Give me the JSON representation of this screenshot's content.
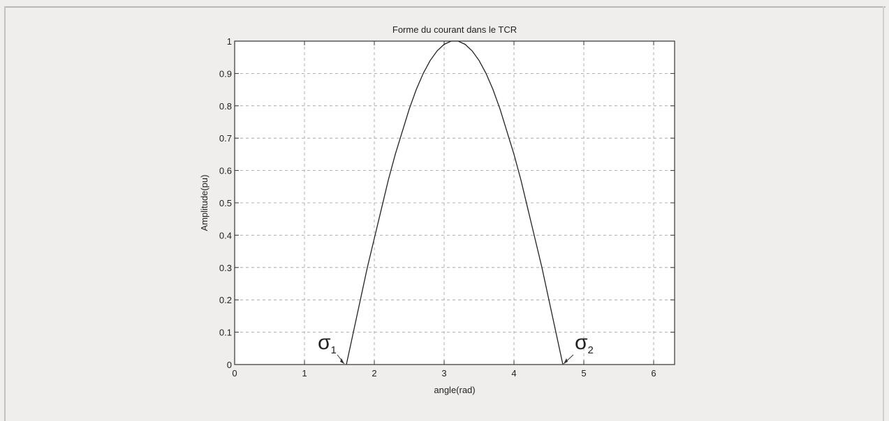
{
  "chart_data": {
    "type": "line",
    "title": "Forme du courant dans le TCR",
    "xlabel": "angle(rad)",
    "ylabel": "Amplitude(pu)",
    "xlim": [
      0,
      6.3
    ],
    "ylim": [
      0,
      1
    ],
    "x_ticks": [
      0,
      1,
      2,
      3,
      4,
      5,
      6
    ],
    "y_ticks": [
      0,
      0.1,
      0.2,
      0.3,
      0.4,
      0.5,
      0.6,
      0.7,
      0.8,
      0.9,
      1
    ],
    "grid": true,
    "series": [
      {
        "x": [
          1.6,
          1.7,
          1.8,
          1.9,
          2.0,
          2.1,
          2.2,
          2.3,
          2.4,
          2.5,
          2.6,
          2.7,
          2.8,
          2.9,
          3.0,
          3.1,
          3.14,
          3.2,
          3.3,
          3.4,
          3.5,
          3.6,
          3.7,
          3.8,
          3.9,
          4.0,
          4.1,
          4.2,
          4.3,
          4.4,
          4.5,
          4.6,
          4.7
        ],
        "y": [
          0.0,
          0.1,
          0.2,
          0.3,
          0.39,
          0.48,
          0.57,
          0.65,
          0.72,
          0.79,
          0.85,
          0.9,
          0.94,
          0.97,
          0.99,
          1.0,
          1.0,
          1.0,
          0.99,
          0.97,
          0.94,
          0.9,
          0.85,
          0.79,
          0.72,
          0.65,
          0.57,
          0.48,
          0.39,
          0.3,
          0.2,
          0.1,
          0.0
        ],
        "color": "#222222"
      }
    ],
    "annotations": [
      {
        "symbol": "σ",
        "subscript": "1",
        "x": 1.57,
        "y": 0
      },
      {
        "symbol": "σ",
        "subscript": "2",
        "x": 4.71,
        "y": 0
      }
    ]
  }
}
